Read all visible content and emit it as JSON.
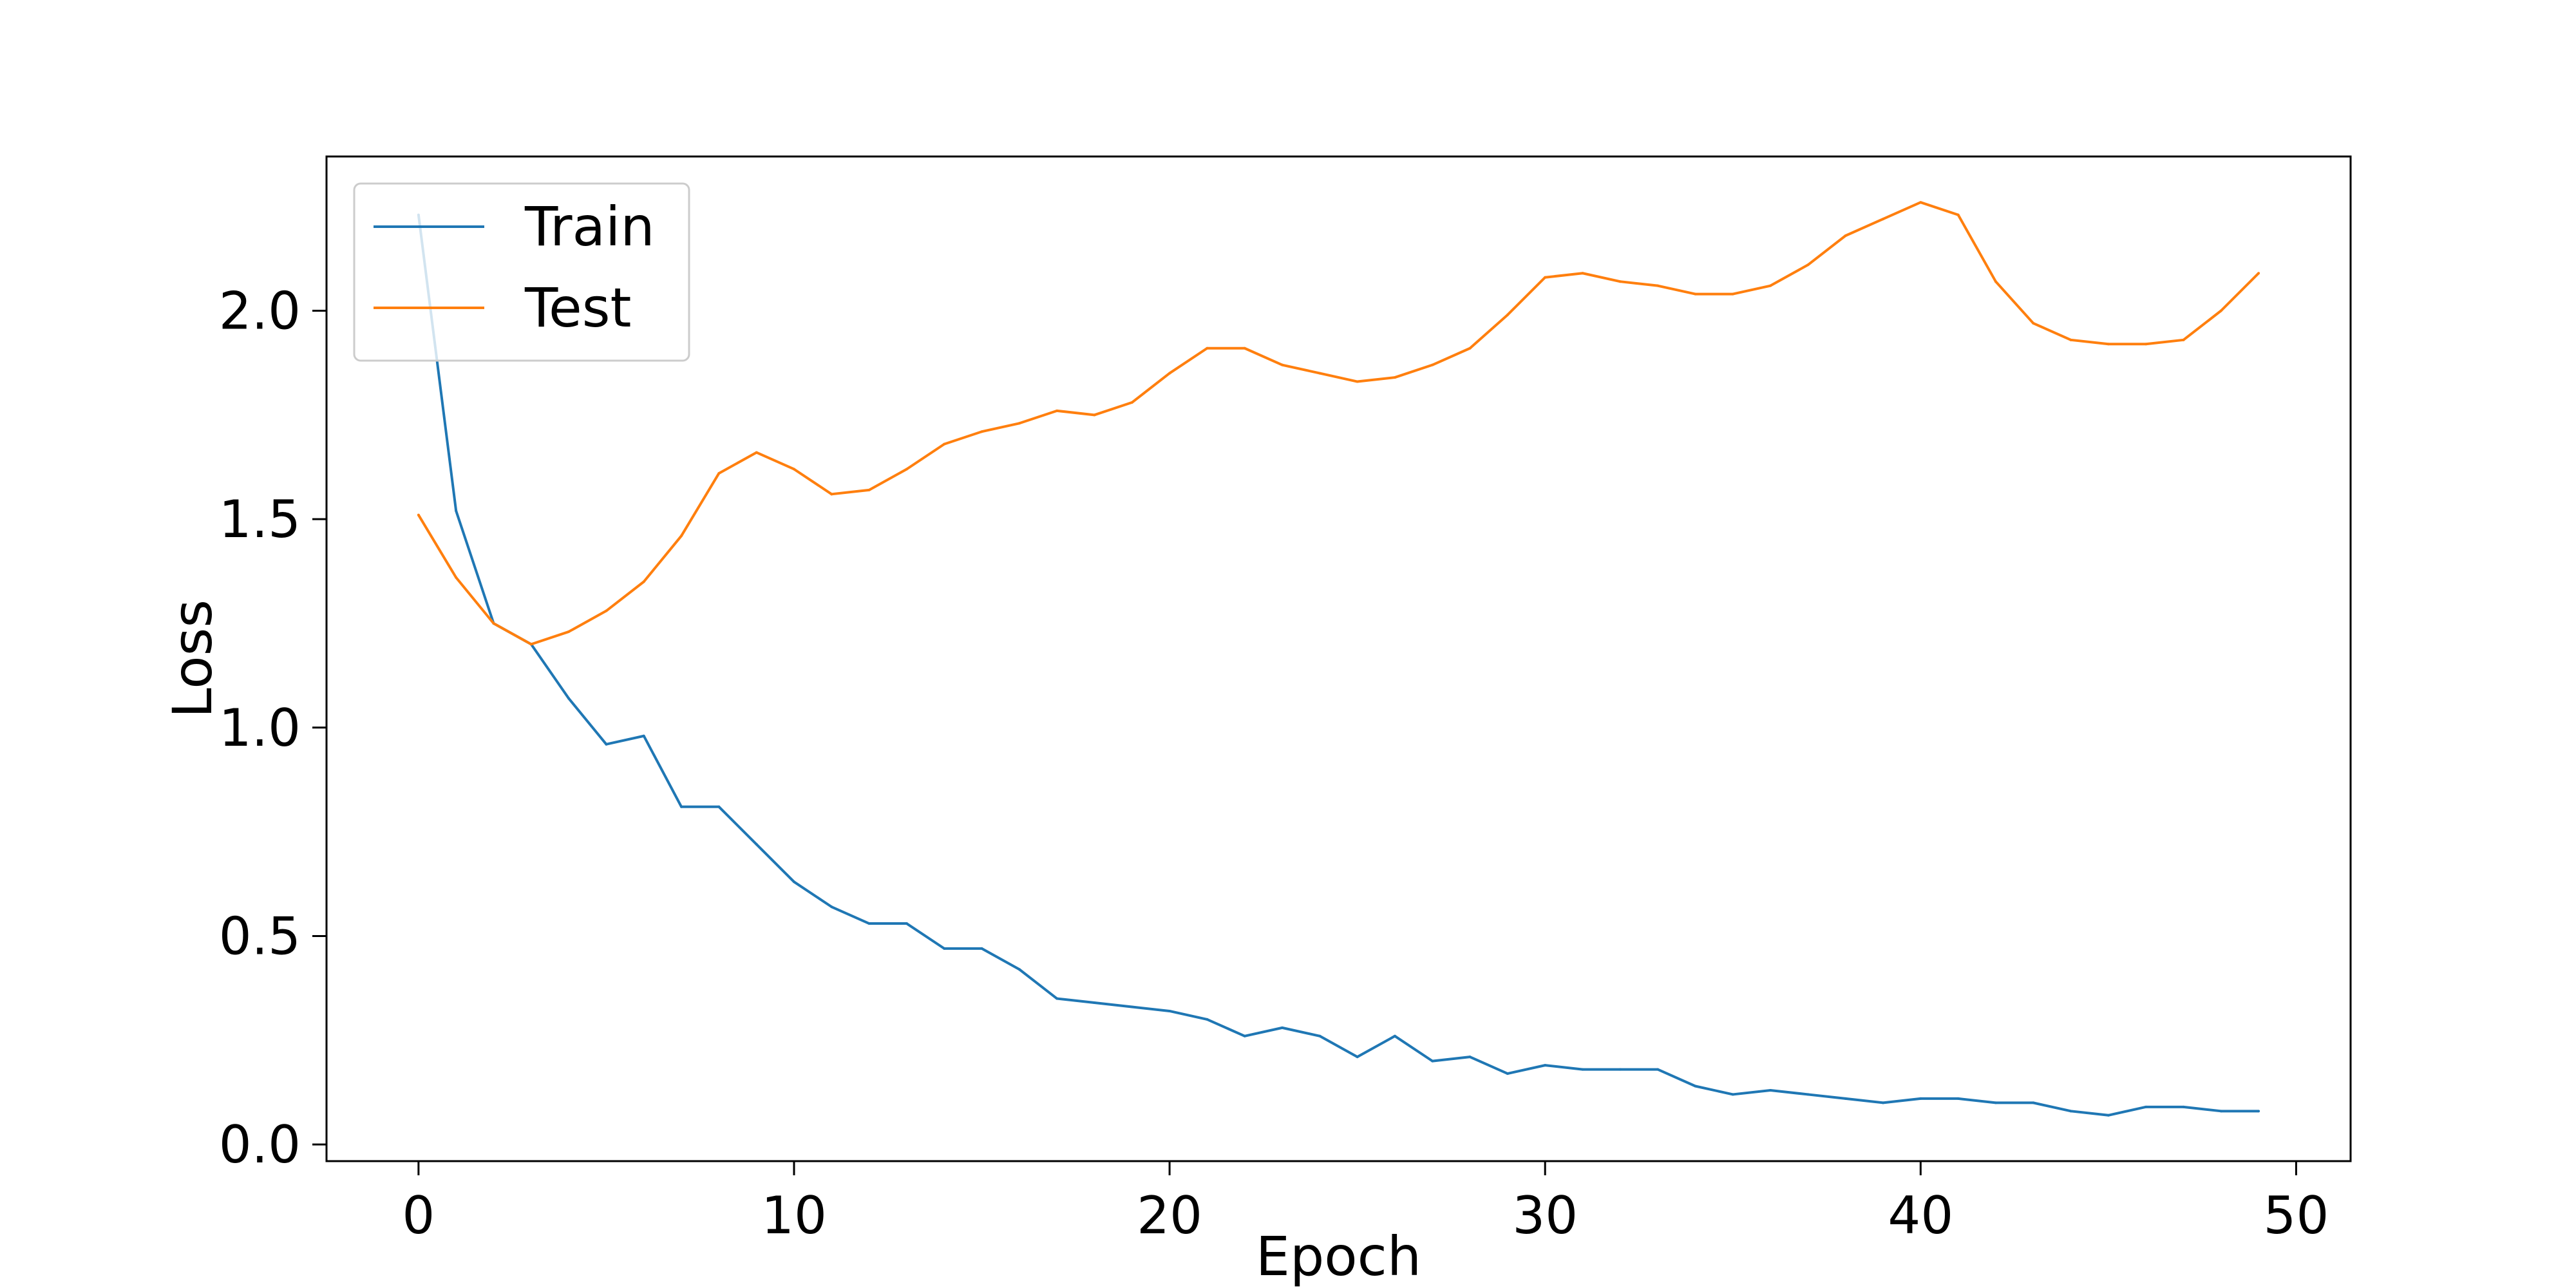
{
  "chart_data": {
    "type": "line",
    "title": "",
    "xlabel": "Epoch",
    "ylabel": "Loss",
    "xlim": [
      -2.45,
      51.45
    ],
    "ylim": [
      -0.04,
      2.37
    ],
    "xticks": [
      0,
      10,
      20,
      30,
      40,
      50
    ],
    "yticks": [
      0.0,
      0.5,
      1.0,
      1.5,
      2.0
    ],
    "xtick_labels": [
      "0",
      "10",
      "20",
      "30",
      "40",
      "50"
    ],
    "ytick_labels": [
      "0.0",
      "0.5",
      "1.0",
      "1.5",
      "2.0"
    ],
    "grid": false,
    "legend_position": "upper-left",
    "x": [
      0,
      1,
      2,
      3,
      4,
      5,
      6,
      7,
      8,
      9,
      10,
      11,
      12,
      13,
      14,
      15,
      16,
      17,
      18,
      19,
      20,
      21,
      22,
      23,
      24,
      25,
      26,
      27,
      28,
      29,
      30,
      31,
      32,
      33,
      34,
      35,
      36,
      37,
      38,
      39,
      40,
      41,
      42,
      43,
      44,
      45,
      46,
      47,
      48,
      49
    ],
    "series": [
      {
        "name": "Train",
        "color": "#1f77b4",
        "values": [
          2.23,
          1.52,
          1.25,
          1.2,
          1.07,
          0.96,
          0.98,
          0.81,
          0.81,
          0.72,
          0.63,
          0.57,
          0.53,
          0.53,
          0.47,
          0.47,
          0.42,
          0.35,
          0.34,
          0.33,
          0.32,
          0.3,
          0.26,
          0.28,
          0.26,
          0.21,
          0.26,
          0.2,
          0.21,
          0.17,
          0.19,
          0.18,
          0.18,
          0.18,
          0.14,
          0.12,
          0.13,
          0.12,
          0.11,
          0.1,
          0.11,
          0.11,
          0.1,
          0.1,
          0.08,
          0.07,
          0.09,
          0.09,
          0.08,
          0.08
        ]
      },
      {
        "name": "Test",
        "color": "#ff7f0e",
        "values": [
          1.51,
          1.36,
          1.25,
          1.2,
          1.23,
          1.28,
          1.35,
          1.46,
          1.61,
          1.66,
          1.62,
          1.56,
          1.57,
          1.62,
          1.68,
          1.71,
          1.73,
          1.76,
          1.75,
          1.78,
          1.85,
          1.91,
          1.91,
          1.87,
          1.85,
          1.83,
          1.84,
          1.87,
          1.91,
          1.99,
          2.08,
          2.09,
          2.07,
          2.06,
          2.04,
          2.04,
          2.06,
          2.11,
          2.18,
          2.22,
          2.26,
          2.23,
          2.07,
          1.97,
          1.93,
          1.92,
          1.92,
          1.93,
          2.0,
          2.09
        ]
      }
    ]
  }
}
